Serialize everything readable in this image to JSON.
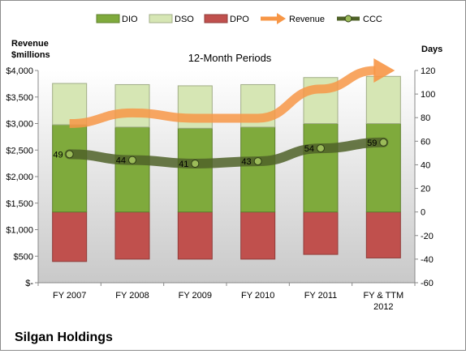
{
  "chart_data": {
    "type": "bar",
    "title": "12-Month Periods",
    "company": "Silgan Holdings",
    "left_axis_title": [
      "Revenue",
      "$millions"
    ],
    "right_axis_title": "Days",
    "categories": [
      [
        "FY 2007"
      ],
      [
        "FY 2008"
      ],
      [
        "FY 2009"
      ],
      [
        "FY 2010"
      ],
      [
        "FY 2011"
      ],
      [
        "FY & TTM",
        "2012"
      ]
    ],
    "left_axis": {
      "ylim": [
        0,
        4000
      ],
      "ticks": [
        0,
        500,
        1000,
        1500,
        2000,
        2500,
        3000,
        3500,
        4000
      ],
      "tick_labels": [
        "$-",
        "$500",
        "$1,000",
        "$1,500",
        "$2,000",
        "$2,500",
        "$3,000",
        "$3,500",
        "$4,000"
      ]
    },
    "right_axis": {
      "ylim": [
        -60,
        120
      ],
      "ticks": [
        -60,
        -40,
        -20,
        0,
        20,
        40,
        60,
        80,
        100,
        120
      ],
      "tick_labels": [
        "-60",
        "-40",
        "-20",
        "0",
        "20",
        "40",
        "60",
        "80",
        "100",
        "120"
      ]
    },
    "legend": {
      "placement": "top",
      "entries": [
        "DIO",
        "DSO",
        "DPO",
        "Revenue",
        "CCC"
      ]
    },
    "series": [
      {
        "name": "DIO",
        "axis": "right",
        "color": "#7faa3c",
        "values": [
          74,
          72,
          71,
          72,
          75,
          75
        ]
      },
      {
        "name": "DSO",
        "axis": "right",
        "color": "#d6e6b4",
        "values": [
          35,
          36,
          36,
          36,
          39,
          40
        ]
      },
      {
        "name": "DPO",
        "axis": "right",
        "color": "#c0504d",
        "values": [
          -42,
          -40,
          -40,
          -40,
          -36,
          -39
        ]
      },
      {
        "name": "Revenue",
        "axis": "left",
        "color": "#f79646",
        "values": [
          3000,
          3200,
          3100,
          3100,
          3650,
          4000
        ]
      },
      {
        "name": "CCC",
        "axis": "right",
        "color": "#4f6228",
        "values": [
          49,
          44,
          41,
          43,
          54,
          59
        ],
        "data_labels": [
          "49",
          "44",
          "41",
          "43",
          "54",
          "59"
        ]
      }
    ],
    "grid": false
  }
}
